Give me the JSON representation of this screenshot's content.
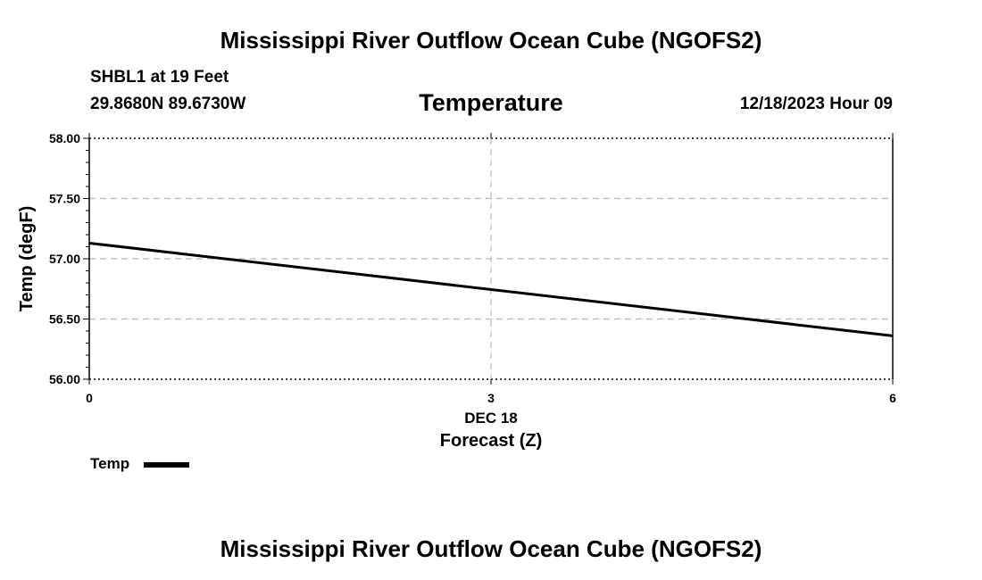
{
  "header": {
    "title": "Mississippi River Outflow Ocean Cube (NGOFS2)",
    "station": "SHBL1 at 19 Feet",
    "coords": "29.8680N  89.6730W",
    "panel_title": "Temperature",
    "timestamp": "12/18/2023 Hour 09"
  },
  "footer": {
    "title": "Mississippi River Outflow Ocean Cube (NGOFS2)"
  },
  "chart_data": {
    "type": "line",
    "title": "Temperature",
    "xlabel": "Forecast (Z)",
    "ylabel": "Temp (degF)",
    "xlim": [
      0,
      6
    ],
    "ylim": [
      56.0,
      58.0
    ],
    "x_ticks": [
      0,
      3,
      6
    ],
    "x_tick_labels": [
      "0",
      "3",
      "6"
    ],
    "x_date_label": "DEC 18",
    "y_ticks": [
      "56.00",
      "56.50",
      "57.00",
      "57.50",
      "58.00"
    ],
    "grid": true,
    "legend_position": "bottom-left",
    "series": [
      {
        "name": "Temp",
        "color": "#000000",
        "x": [
          0,
          6
        ],
        "y": [
          57.13,
          56.36
        ]
      }
    ]
  }
}
